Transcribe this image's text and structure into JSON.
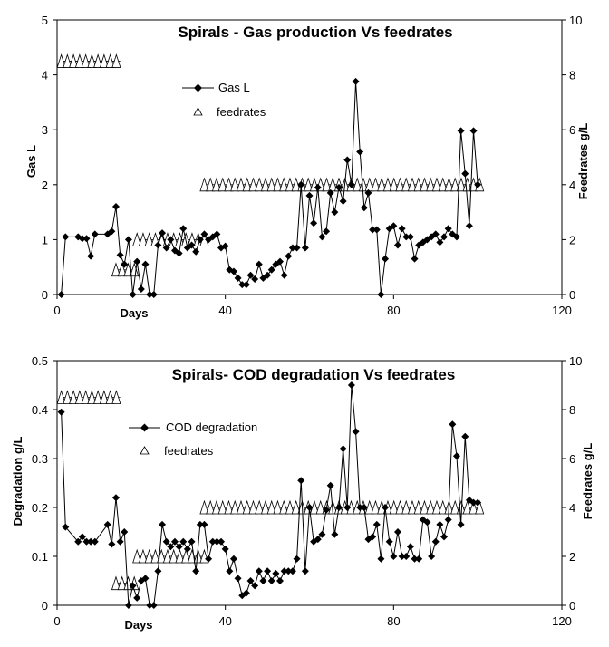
{
  "chart_data": [
    {
      "type": "line",
      "title": "Spirals - Gas production Vs feedrates",
      "xlabel": "Days",
      "ylabel": "Gas L",
      "y2label": "Feedrates g/L",
      "xlim": [
        0,
        120
      ],
      "ylim": [
        0,
        5
      ],
      "y2lim": [
        0,
        10
      ],
      "xticks": [
        "0",
        "40",
        "80",
        "120"
      ],
      "yticks": [
        "0",
        "1",
        "2",
        "3",
        "4",
        "5"
      ],
      "y2ticks": [
        "0",
        "2",
        "4",
        "6",
        "8",
        "10"
      ],
      "legend_position": "upper-center",
      "series": [
        {
          "name": "Gas L",
          "axis": "left",
          "marker": "diamond",
          "x": [
            1,
            2,
            5,
            6,
            7,
            8,
            9,
            12,
            13,
            14,
            15,
            16,
            17,
            18,
            19,
            20,
            21,
            22,
            23,
            24,
            25,
            26,
            27,
            28,
            29,
            30,
            31,
            32,
            33,
            34,
            35,
            36,
            37,
            38,
            39,
            40,
            41,
            42,
            43,
            44,
            45,
            46,
            47,
            48,
            49,
            50,
            51,
            52,
            53,
            54,
            55,
            56,
            57,
            58,
            59,
            60,
            61,
            62,
            63,
            64,
            65,
            66,
            67,
            68,
            69,
            70,
            71,
            72,
            73,
            74,
            75,
            76,
            77,
            78,
            79,
            80,
            81,
            82,
            83,
            84,
            85,
            86,
            87,
            88,
            89,
            90,
            91,
            92,
            93,
            94,
            95,
            96,
            97,
            98,
            99,
            100
          ],
          "values": [
            0,
            1.05,
            1.05,
            1.02,
            1.02,
            0.7,
            1.1,
            1.1,
            1.15,
            1.6,
            0.72,
            0.55,
            1.0,
            0.0,
            0.6,
            0.1,
            0.55,
            0.0,
            0.0,
            0.9,
            1.12,
            0.85,
            1.0,
            0.8,
            0.75,
            1.2,
            0.85,
            0.9,
            0.78,
            1.0,
            1.1,
            1.0,
            1.05,
            1.1,
            0.85,
            0.88,
            0.45,
            0.42,
            0.3,
            0.18,
            0.18,
            0.35,
            0.28,
            0.55,
            0.3,
            0.35,
            0.45,
            0.55,
            0.6,
            0.35,
            0.7,
            0.85,
            0.85,
            2.0,
            0.85,
            1.8,
            1.3,
            1.95,
            1.05,
            1.15,
            1.85,
            1.5,
            1.95,
            1.7,
            2.45,
            2.0,
            3.88,
            2.6,
            1.58,
            1.85,
            1.18,
            1.18,
            0.0,
            0.65,
            1.2,
            1.25,
            0.9,
            1.2,
            1.05,
            1.05,
            0.65,
            0.9,
            0.95,
            1.0,
            1.05,
            1.1,
            0.95,
            1.05,
            1.2,
            1.1,
            1.05,
            2.98,
            2.2,
            1.25,
            2.98,
            2.0
          ]
        },
        {
          "name": "feedrates",
          "axis": "right",
          "marker": "triangle",
          "segments": [
            {
              "x_start": 1,
              "x_end": 15,
              "value": 8.5
            },
            {
              "x_start": 14,
              "x_end": 19,
              "value": 0.9
            },
            {
              "x_start": 19,
              "x_end": 35,
              "value": 2.0
            },
            {
              "x_start": 35,
              "x_end": 101,
              "value": 4.0
            }
          ]
        }
      ]
    },
    {
      "type": "line",
      "title": "Spirals- COD degradation Vs feedrates",
      "xlabel": "Days",
      "ylabel": "Degradation g/L",
      "y2label": "Feedrates g/L",
      "xlim": [
        0,
        120
      ],
      "ylim": [
        0,
        0.5
      ],
      "y2lim": [
        0,
        10
      ],
      "xticks": [
        "0",
        "40",
        "80",
        "120"
      ],
      "yticks": [
        "0",
        "0.1",
        "0.2",
        "0.3",
        "0.4",
        "0.5"
      ],
      "y2ticks": [
        "0",
        "2",
        "4",
        "6",
        "8",
        "10"
      ],
      "legend_position": "upper-center",
      "series": [
        {
          "name": "COD degradation",
          "axis": "left",
          "marker": "diamond",
          "x": [
            1,
            2,
            5,
            6,
            7,
            8,
            9,
            12,
            13,
            14,
            15,
            16,
            17,
            18,
            19,
            20,
            21,
            22,
            23,
            24,
            25,
            26,
            27,
            28,
            29,
            30,
            31,
            32,
            33,
            34,
            35,
            36,
            37,
            38,
            39,
            40,
            41,
            42,
            43,
            44,
            45,
            46,
            47,
            48,
            49,
            50,
            51,
            52,
            53,
            54,
            55,
            56,
            57,
            58,
            59,
            60,
            61,
            62,
            63,
            64,
            65,
            66,
            67,
            68,
            69,
            70,
            71,
            72,
            73,
            74,
            75,
            76,
            77,
            78,
            79,
            80,
            81,
            82,
            83,
            84,
            85,
            86,
            87,
            88,
            89,
            90,
            91,
            92,
            93,
            94,
            95,
            96,
            97,
            98,
            99,
            100
          ],
          "values": [
            0.395,
            0.16,
            0.13,
            0.14,
            0.13,
            0.13,
            0.13,
            0.165,
            0.125,
            0.22,
            0.13,
            0.15,
            0.0,
            0.04,
            0.015,
            0.05,
            0.055,
            0.0,
            0.0,
            0.07,
            0.165,
            0.13,
            0.12,
            0.13,
            0.12,
            0.13,
            0.115,
            0.13,
            0.07,
            0.165,
            0.165,
            0.095,
            0.13,
            0.13,
            0.13,
            0.115,
            0.07,
            0.095,
            0.055,
            0.02,
            0.025,
            0.05,
            0.04,
            0.07,
            0.05,
            0.07,
            0.05,
            0.065,
            0.05,
            0.07,
            0.07,
            0.07,
            0.095,
            0.255,
            0.07,
            0.2,
            0.13,
            0.135,
            0.145,
            0.195,
            0.245,
            0.145,
            0.2,
            0.32,
            0.2,
            0.45,
            0.355,
            0.2,
            0.2,
            0.135,
            0.14,
            0.165,
            0.095,
            0.2,
            0.13,
            0.1,
            0.15,
            0.1,
            0.1,
            0.12,
            0.095,
            0.095,
            0.175,
            0.17,
            0.1,
            0.13,
            0.165,
            0.14,
            0.175,
            0.37,
            0.305,
            0.165,
            0.345,
            0.215,
            0.21,
            0.21
          ]
        },
        {
          "name": "feedrates",
          "axis": "right",
          "marker": "triangle",
          "segments": [
            {
              "x_start": 1,
              "x_end": 15,
              "value": 8.5
            },
            {
              "x_start": 14,
              "x_end": 19,
              "value": 0.9
            },
            {
              "x_start": 19,
              "x_end": 35,
              "value": 2.0
            },
            {
              "x_start": 35,
              "x_end": 101,
              "value": 4.0
            }
          ]
        }
      ]
    }
  ]
}
